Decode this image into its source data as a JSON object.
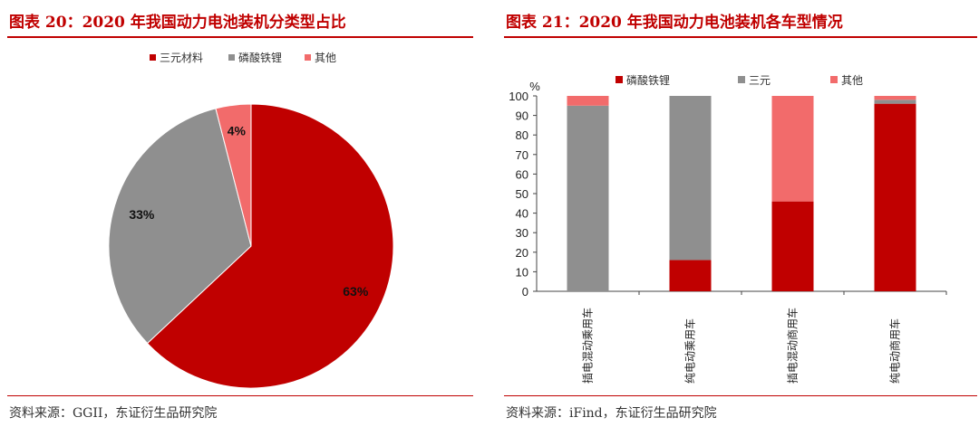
{
  "left": {
    "title": "图表 20：2020 年我国动力电池装机分类型占比",
    "source": "资料来源：GGII，东证衍生品研究院"
  },
  "right": {
    "title": "图表 21：2020 年我国动力电池装机各车型情况",
    "source": "资料来源：iFind，东证衍生品研究院"
  },
  "chart_data": [
    {
      "type": "pie",
      "categories": [
        "三元材料",
        "磷酸铁锂",
        "其他"
      ],
      "values": [
        63,
        33,
        4
      ],
      "labels": [
        "63%",
        "33%",
        "4%"
      ],
      "colors": [
        "#c00000",
        "#8f8f8f",
        "#f26b6b"
      ],
      "legend": "top-center"
    },
    {
      "type": "bar",
      "stacked": true,
      "categories": [
        "插电混动乘用车",
        "纯电动乘用车",
        "插电混动商用车",
        "纯电动商用车"
      ],
      "series": [
        {
          "name": "磷酸铁锂",
          "values": [
            0,
            16,
            46,
            96
          ],
          "color": "#c00000"
        },
        {
          "name": "三元",
          "values": [
            95,
            84,
            0,
            2
          ],
          "color": "#8f8f8f"
        },
        {
          "name": "其他",
          "values": [
            5,
            0,
            54,
            2
          ],
          "color": "#f26b6b"
        }
      ],
      "ylabel": "%",
      "ylim": [
        0,
        100
      ],
      "yticks": [
        0,
        10,
        20,
        30,
        40,
        50,
        60,
        70,
        80,
        90,
        100
      ],
      "legend": "top-center",
      "grid": false
    }
  ]
}
